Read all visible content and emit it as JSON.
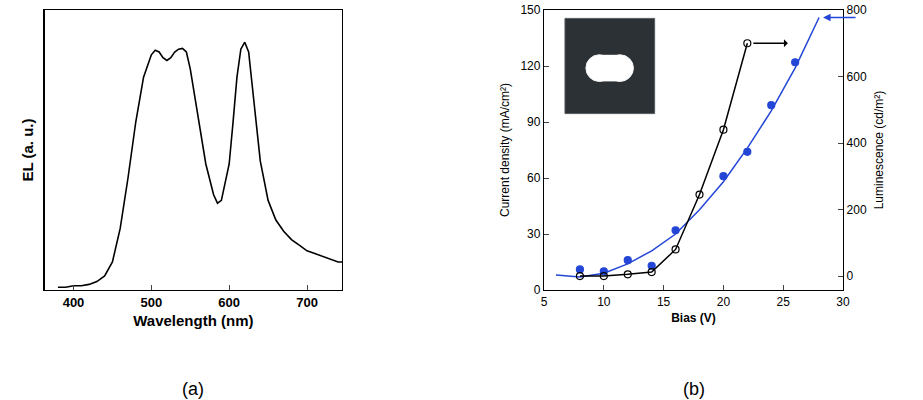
{
  "chart_data": [
    {
      "type": "line",
      "title": "(a)",
      "x_label": "Wavelength (nm)",
      "y_label": "EL (a. u.)",
      "x": [
        380,
        390,
        400,
        410,
        420,
        430,
        440,
        450,
        460,
        470,
        480,
        490,
        500,
        505,
        510,
        515,
        520,
        525,
        530,
        535,
        540,
        545,
        550,
        560,
        570,
        580,
        585,
        590,
        600,
        605,
        610,
        615,
        620,
        625,
        630,
        640,
        650,
        660,
        670,
        680,
        690,
        700,
        710,
        720,
        730,
        740,
        745
      ],
      "values": [
        0.01,
        0.01,
        0.015,
        0.015,
        0.02,
        0.03,
        0.05,
        0.1,
        0.22,
        0.4,
        0.6,
        0.76,
        0.84,
        0.856,
        0.85,
        0.83,
        0.82,
        0.83,
        0.85,
        0.86,
        0.863,
        0.85,
        0.79,
        0.62,
        0.45,
        0.34,
        0.31,
        0.32,
        0.45,
        0.6,
        0.76,
        0.86,
        0.885,
        0.85,
        0.72,
        0.46,
        0.32,
        0.25,
        0.21,
        0.18,
        0.16,
        0.14,
        0.13,
        0.12,
        0.11,
        0.1,
        0.1
      ],
      "color": "#000000",
      "xlim": [
        363,
        745
      ],
      "xticks": [
        400,
        500,
        600,
        700
      ],
      "ylim": [
        0,
        1
      ],
      "tick_labels": "x"
    },
    {
      "type": "scatter",
      "title": "(b)",
      "x_label": "Bias (V)",
      "y_label": "Current density (mA/cm²)",
      "y2_label": "Luminescence (cd/m²)",
      "xlim": [
        5,
        30
      ],
      "xticks": [
        5,
        10,
        15,
        20,
        25,
        30
      ],
      "ylim": [
        0,
        150
      ],
      "yticks": [
        0,
        30,
        60,
        90,
        120,
        150
      ],
      "y2lim": [
        -42,
        800
      ],
      "y2ticks": [
        0,
        200,
        400,
        600,
        800
      ],
      "series": [
        {
          "type": "scatter",
          "color": "#2346d6",
          "marker": "filled circle",
          "x": [
            8,
            10,
            12,
            14,
            16,
            20,
            22,
            24,
            26
          ],
          "values": [
            11,
            10,
            16,
            13,
            32,
            61,
            74,
            99,
            122
          ]
        },
        {
          "type": "line",
          "color": "#2346d6",
          "line_style": "solid",
          "x": [
            6,
            8,
            10,
            12,
            14,
            16,
            18,
            20,
            22,
            24,
            26,
            28
          ],
          "values": [
            8,
            7,
            9,
            14,
            21,
            30,
            43,
            58,
            76,
            96,
            119,
            146
          ]
        },
        {
          "type": "line",
          "color": "#000000",
          "marker": "open circle",
          "line_style": "solid",
          "axis": "y2",
          "x": [
            8,
            10,
            12,
            14,
            16,
            18,
            20,
            22
          ],
          "values": [
            0,
            0,
            5,
            12,
            80,
            245,
            440,
            700
          ]
        }
      ]
    }
  ]
}
